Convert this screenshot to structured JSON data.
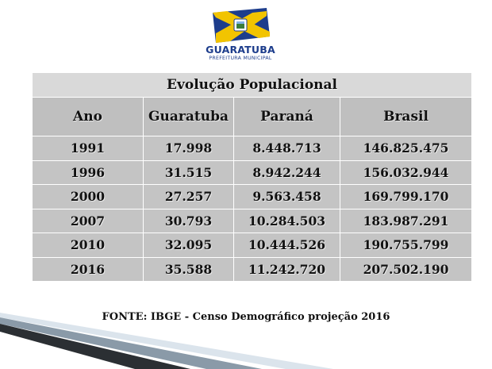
{
  "logo": {
    "name": "GUARATUBA",
    "subtitle": "PREFEITURA MUNICIPAL",
    "icon": "municipal-flag-icon",
    "colors": {
      "blue": "#1d3d8c",
      "yellow": "#f2c400"
    }
  },
  "table": {
    "title": "Evolução Populacional",
    "columns": [
      "Ano",
      "Guaratuba",
      "Paraná",
      "Brasil"
    ],
    "rows": [
      [
        "1991",
        "17.998",
        "8.448.713",
        "146.825.475"
      ],
      [
        "1996",
        "31.515",
        "8.942.244",
        "156.032.944"
      ],
      [
        "2000",
        "27.257",
        "9.563.458",
        "169.799.170"
      ],
      [
        "2007",
        "30.793",
        "10.284.503",
        "183.987.291"
      ],
      [
        "2010",
        "32.095",
        "10.444.526",
        "190.755.799"
      ],
      [
        "2016",
        "35.588",
        "11.242.720",
        "207.502.190"
      ]
    ]
  },
  "source": "FONTE: IBGE - Censo Demográfico projeção  2016"
}
